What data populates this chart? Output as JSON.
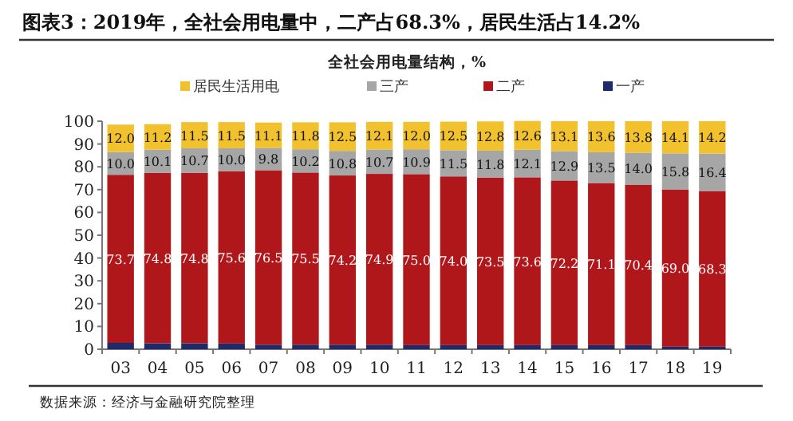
{
  "chart_data": {
    "type": "bar",
    "stacked": true,
    "title": "图表3：2019年，全社会用电量中，二产占68.3%，居民生活占14.2%",
    "subtitle": "全社会用电量结构，%",
    "categories": [
      "03",
      "04",
      "05",
      "06",
      "07",
      "08",
      "09",
      "10",
      "11",
      "12",
      "13",
      "14",
      "15",
      "16",
      "17",
      "18",
      "19"
    ],
    "series": [
      {
        "name": "一产",
        "color": "#1f2a6b",
        "values": [
          2.8,
          2.6,
          2.6,
          2.5,
          2.0,
          2.0,
          2.0,
          2.0,
          1.8,
          1.8,
          1.8,
          1.8,
          1.8,
          1.8,
          1.8,
          1.1,
          1.1
        ]
      },
      {
        "name": "二产",
        "color": "#b0171b",
        "values": [
          73.7,
          74.8,
          74.8,
          75.6,
          76.5,
          75.5,
          74.2,
          74.9,
          75.0,
          74.0,
          73.5,
          73.6,
          72.2,
          71.1,
          70.4,
          69.0,
          68.3
        ],
        "value_labels": [
          "73.7",
          "74.8",
          "74.8",
          "75.6",
          "76.5",
          "75.5",
          "74.2",
          "74.9",
          "75.0",
          "74.0",
          "73.5",
          "73.6",
          "72.2",
          "71.1",
          "70.4",
          "69.0",
          "68.3"
        ]
      },
      {
        "name": "三产",
        "color": "#a6a6a6",
        "values": [
          10.0,
          10.1,
          10.7,
          10.0,
          9.8,
          10.2,
          10.8,
          10.7,
          10.9,
          11.5,
          11.8,
          12.1,
          12.9,
          13.5,
          14.0,
          15.8,
          16.4
        ],
        "value_labels": [
          "10.0",
          "10.1",
          "10.7",
          "10.0",
          "9.8",
          "10.2",
          "10.8",
          "10.7",
          "10.9",
          "11.5",
          "11.8",
          "12.1",
          "12.9",
          "13.5",
          "14.0",
          "15.8",
          "16.4"
        ]
      },
      {
        "name": "居民生活用电",
        "color": "#f2c12e",
        "values": [
          12.0,
          11.2,
          11.5,
          11.5,
          11.1,
          11.8,
          12.5,
          12.1,
          12.0,
          12.5,
          12.8,
          12.6,
          13.1,
          13.6,
          13.8,
          14.1,
          14.2
        ],
        "value_labels": [
          "12.0",
          "11.2",
          "11.5",
          "11.5",
          "11.1",
          "11.8",
          "12.5",
          "12.1",
          "12.0",
          "12.5",
          "12.8",
          "12.6",
          "13.1",
          "13.6",
          "13.8",
          "14.1",
          "14.2"
        ]
      }
    ],
    "ylim": [
      0,
      100
    ],
    "yticks": [
      0,
      10,
      20,
      30,
      40,
      50,
      60,
      70,
      80,
      90,
      100
    ],
    "legend": "top",
    "annotations": [
      "数据来源：经济与金融研究院整理"
    ]
  }
}
